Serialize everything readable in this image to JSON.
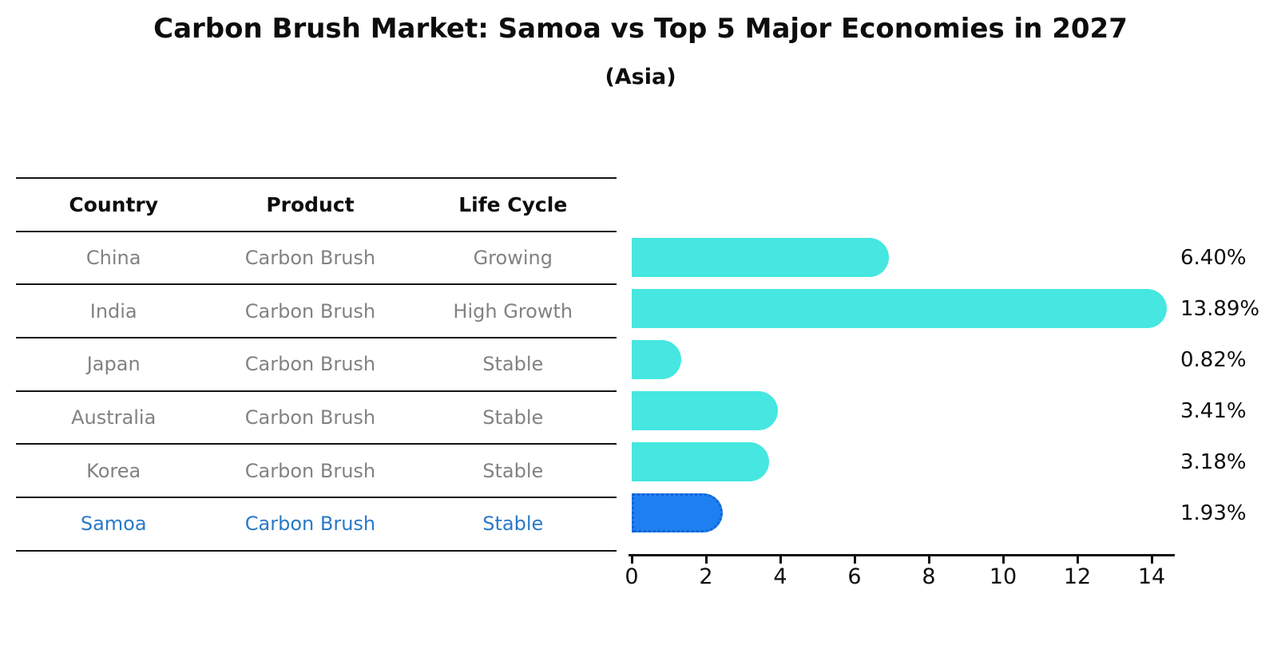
{
  "table": {
    "headers": [
      "Country",
      "Product",
      "Life Cycle"
    ],
    "rows": [
      {
        "country": "China",
        "product": "Carbon Brush",
        "life_cycle": "Growing",
        "highlight": false
      },
      {
        "country": "India",
        "product": "Carbon Brush",
        "life_cycle": "High Growth",
        "highlight": false
      },
      {
        "country": "Japan",
        "product": "Carbon Brush",
        "life_cycle": "Stable",
        "highlight": false
      },
      {
        "country": "Australia",
        "product": "Carbon Brush",
        "life_cycle": "Stable",
        "highlight": false
      },
      {
        "country": "Korea",
        "product": "Carbon Brush",
        "life_cycle": "Stable",
        "highlight": false
      },
      {
        "country": "Samoa",
        "product": "Carbon Brush",
        "life_cycle": "Stable",
        "highlight": true
      }
    ]
  },
  "chart_data": {
    "type": "bar",
    "orientation": "horizontal",
    "title": "Carbon Brush Market: Samoa vs Top 5 Major Economies in 2027",
    "subtitle": "(Asia)",
    "categories": [
      "China",
      "India",
      "Japan",
      "Australia",
      "Korea",
      "Samoa"
    ],
    "values": [
      6.4,
      13.89,
      0.82,
      3.41,
      3.18,
      1.93
    ],
    "value_labels": [
      "6.40%",
      "13.89%",
      "0.82%",
      "3.41%",
      "3.18%",
      "1.93%"
    ],
    "x_ticks": [
      "0",
      "2",
      "4",
      "6",
      "8",
      "10",
      "12",
      "14"
    ],
    "xlim": [
      0,
      14.6
    ],
    "grid": false,
    "legend": "none",
    "bar_color": "#45E7E0",
    "highlight_bar_color": "#1E80F0",
    "highlight_border_color": "#1263D6",
    "highlight_text_color": "#2979C9",
    "highlight_index": 5,
    "axis_color": "#0d0d0d"
  }
}
